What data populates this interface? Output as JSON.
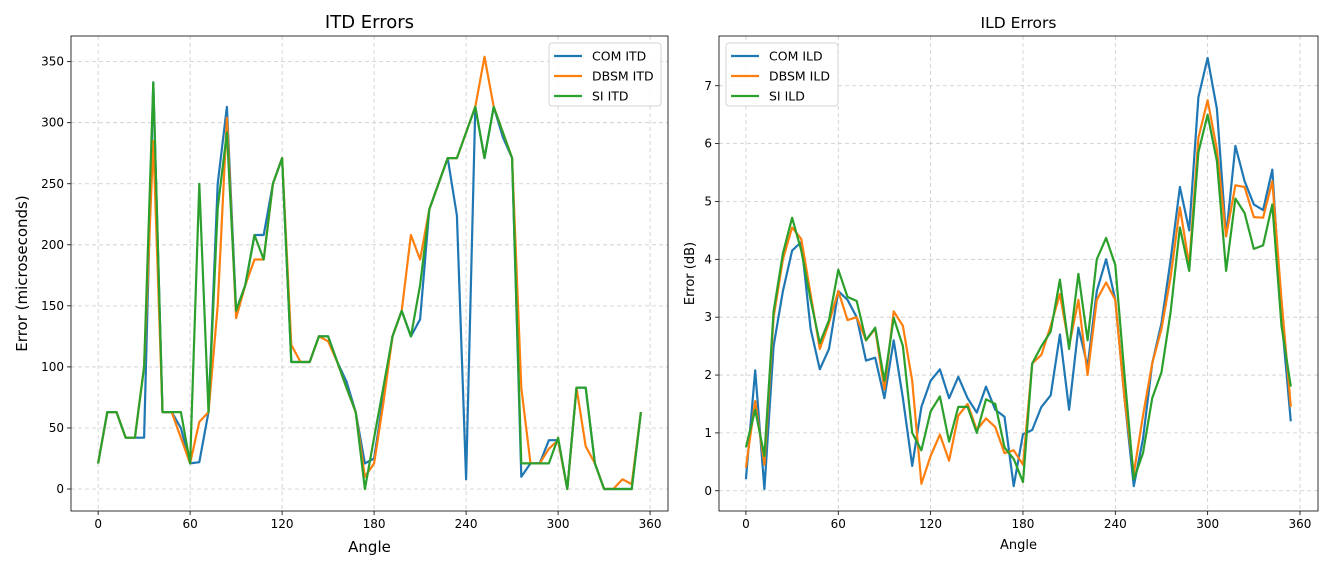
{
  "chart_data": [
    {
      "type": "line",
      "title": "ITD Errors",
      "xlabel": "Angle",
      "ylabel": "Error (microseconds)",
      "xlim": [
        -17.7,
        371.7
      ],
      "ylim": [
        -18,
        371
      ],
      "xticks": [
        0,
        60,
        120,
        180,
        240,
        300,
        360
      ],
      "yticks": [
        0,
        50,
        100,
        150,
        200,
        250,
        300,
        350
      ],
      "grid": true,
      "legend_position": "top-right",
      "x": [
        0,
        6,
        12,
        18,
        24,
        30,
        36,
        42,
        48,
        54,
        60,
        66,
        72,
        78,
        84,
        90,
        96,
        102,
        108,
        114,
        120,
        126,
        132,
        138,
        144,
        150,
        156,
        162,
        168,
        174,
        180,
        186,
        192,
        198,
        204,
        210,
        216,
        222,
        228,
        234,
        240,
        246,
        252,
        258,
        264,
        270,
        276,
        282,
        288,
        294,
        300,
        306,
        312,
        318,
        324,
        330,
        336,
        342,
        348,
        354
      ],
      "series": [
        {
          "name": "COM ITD",
          "color": "#1f77b4",
          "values": [
            21,
            63,
            63,
            42,
            42,
            42,
            333,
            63,
            63,
            50,
            21,
            22,
            63,
            250,
            313,
            146,
            167,
            208,
            208,
            250,
            271,
            104,
            104,
            104,
            125,
            125,
            104,
            88,
            63,
            21,
            25,
            75,
            125,
            146,
            125,
            139,
            229,
            250,
            271,
            224,
            8,
            313,
            271,
            313,
            288,
            271,
            10,
            21,
            21,
            40,
            40,
            0,
            83,
            83,
            21,
            0,
            0,
            0,
            0,
            63
          ]
        },
        {
          "name": "DBSM ITD",
          "color": "#ff7f0e",
          "values": [
            21,
            63,
            63,
            42,
            42,
            100,
            285,
            63,
            63,
            42,
            21,
            55,
            63,
            150,
            304,
            140,
            167,
            188,
            188,
            250,
            271,
            118,
            104,
            104,
            125,
            121,
            104,
            83,
            63,
            10,
            21,
            70,
            125,
            146,
            208,
            188,
            229,
            250,
            271,
            271,
            292,
            313,
            354,
            313,
            292,
            271,
            83,
            21,
            21,
            33,
            40,
            0,
            83,
            35,
            21,
            0,
            0,
            8,
            4,
            63
          ]
        },
        {
          "name": "SI ITD",
          "color": "#2ca02c",
          "values": [
            21,
            63,
            63,
            42,
            42,
            100,
            333,
            63,
            63,
            63,
            21,
            250,
            63,
            230,
            292,
            146,
            167,
            208,
            188,
            250,
            271,
            104,
            104,
            104,
            125,
            125,
            104,
            83,
            63,
            0,
            42,
            83,
            125,
            146,
            125,
            167,
            229,
            250,
            271,
            271,
            292,
            313,
            271,
            313,
            292,
            271,
            21,
            21,
            21,
            21,
            42,
            0,
            83,
            83,
            21,
            0,
            0,
            0,
            0,
            63
          ]
        }
      ]
    },
    {
      "type": "line",
      "title": "ILD Errors",
      "xlabel": "Angle",
      "ylabel": "Error (dB)",
      "xlim": [
        -17.5,
        371.7
      ],
      "ylim": [
        -0.35,
        7.86
      ],
      "xticks": [
        0,
        60,
        120,
        180,
        240,
        300,
        360
      ],
      "yticks": [
        0,
        1,
        2,
        3,
        4,
        5,
        6,
        7
      ],
      "grid": true,
      "legend_position": "top-left",
      "x": [
        0,
        6,
        12,
        18,
        24,
        30,
        36,
        42,
        48,
        54,
        60,
        66,
        72,
        78,
        84,
        90,
        96,
        102,
        108,
        114,
        120,
        126,
        132,
        138,
        144,
        150,
        156,
        162,
        168,
        174,
        180,
        186,
        192,
        198,
        204,
        210,
        216,
        222,
        228,
        234,
        240,
        246,
        252,
        258,
        264,
        270,
        276,
        282,
        288,
        294,
        300,
        306,
        312,
        318,
        324,
        330,
        336,
        342,
        348,
        354
      ],
      "series": [
        {
          "name": "COM ILD",
          "color": "#1f77b4",
          "values": [
            0.2,
            2.08,
            0.03,
            2.5,
            3.45,
            4.15,
            4.3,
            2.8,
            2.1,
            2.45,
            3.45,
            3.3,
            3.0,
            2.25,
            2.3,
            1.6,
            2.6,
            1.6,
            0.43,
            1.45,
            1.9,
            2.1,
            1.6,
            1.97,
            1.6,
            1.35,
            1.8,
            1.4,
            1.28,
            0.08,
            0.98,
            1.05,
            1.45,
            1.65,
            2.7,
            1.4,
            2.82,
            2.15,
            3.45,
            4.0,
            3.3,
            1.6,
            0.08,
            0.9,
            2.2,
            2.9,
            4.0,
            5.25,
            4.5,
            6.8,
            7.48,
            6.6,
            4.4,
            5.96,
            5.35,
            4.95,
            4.85,
            5.55,
            3.0,
            1.2
          ]
        },
        {
          "name": "DBSM ILD",
          "color": "#ff7f0e",
          "values": [
            0.4,
            1.55,
            0.45,
            3.0,
            4.0,
            4.55,
            4.35,
            3.4,
            2.45,
            2.9,
            3.45,
            2.95,
            3.0,
            2.6,
            2.8,
            1.75,
            3.1,
            2.85,
            1.9,
            0.12,
            0.6,
            0.97,
            0.52,
            1.3,
            1.5,
            1.05,
            1.25,
            1.1,
            0.65,
            0.7,
            0.45,
            2.2,
            2.35,
            2.85,
            3.4,
            2.5,
            3.3,
            2.0,
            3.3,
            3.6,
            3.3,
            1.6,
            0.3,
            1.3,
            2.2,
            2.8,
            3.7,
            4.9,
            3.9,
            6.1,
            6.75,
            5.9,
            4.4,
            5.28,
            5.25,
            4.73,
            4.72,
            5.35,
            3.3,
            1.45
          ]
        },
        {
          "name": "SI ILD",
          "color": "#2ca02c",
          "values": [
            0.75,
            1.4,
            0.6,
            3.1,
            4.1,
            4.72,
            4.15,
            3.3,
            2.55,
            2.95,
            3.82,
            3.35,
            3.28,
            2.6,
            2.82,
            1.9,
            2.99,
            2.5,
            1.0,
            0.7,
            1.37,
            1.63,
            0.85,
            1.45,
            1.45,
            1.0,
            1.58,
            1.5,
            0.75,
            0.55,
            0.15,
            2.2,
            2.5,
            2.75,
            3.65,
            2.45,
            3.75,
            2.6,
            4.0,
            4.37,
            3.9,
            2.0,
            0.2,
            0.65,
            1.6,
            2.05,
            3.1,
            4.55,
            3.8,
            5.85,
            6.5,
            5.7,
            3.8,
            5.05,
            4.8,
            4.18,
            4.24,
            4.95,
            2.85,
            1.8
          ]
        }
      ]
    }
  ]
}
